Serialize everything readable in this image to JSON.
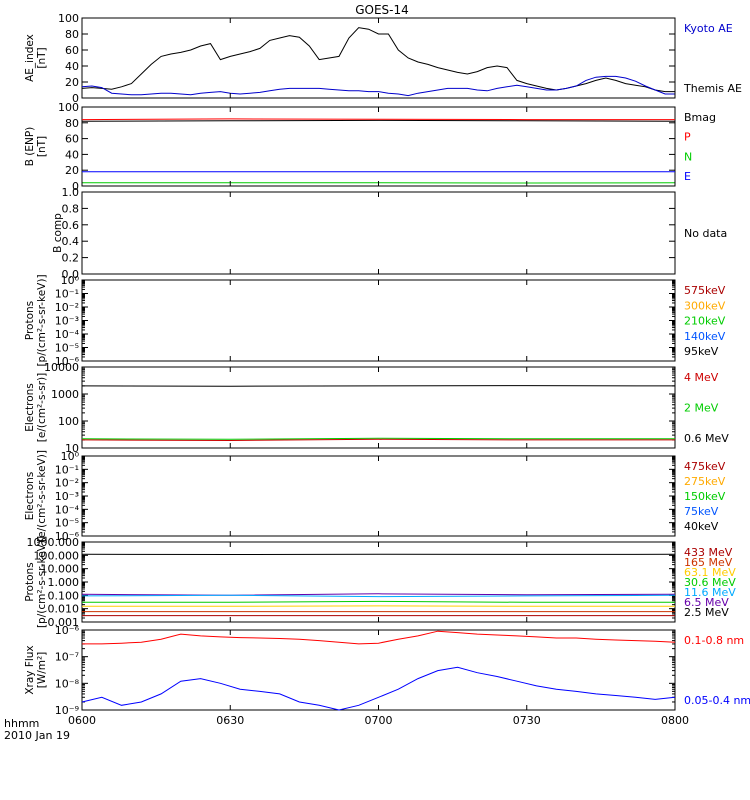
{
  "title": "GOES-14",
  "time_axis": {
    "ticks": [
      "0600",
      "0630",
      "0700",
      "0730",
      "0800"
    ],
    "corner_label": "hhmm",
    "date": "2010 Jan 19"
  },
  "panels": [
    {
      "ylabel": [
        "AE_index",
        "[nT]"
      ],
      "scale": "linear",
      "ylim": [
        0,
        100
      ],
      "yticks": [
        "0",
        "20",
        "40",
        "60",
        "80",
        "100"
      ],
      "legend": [
        {
          "label": "Kyoto AE",
          "color": "#0000cc"
        },
        {
          "label": "Themis AE",
          "color": "#000000"
        }
      ]
    },
    {
      "ylabel": [
        "B (ENP)",
        "[nT]"
      ],
      "scale": "linear",
      "ylim": [
        0,
        100
      ],
      "yticks": [
        "0",
        "20",
        "40",
        "60",
        "80",
        "100"
      ],
      "legend": [
        {
          "label": "Bmag",
          "color": "#000000"
        },
        {
          "label": "P",
          "color": "#ff0000"
        },
        {
          "label": "N",
          "color": "#00cc00"
        },
        {
          "label": "E",
          "color": "#0000ff"
        }
      ]
    },
    {
      "ylabel": [
        "B comp"
      ],
      "scale": "linear",
      "ylim": [
        0,
        1
      ],
      "yticks": [
        "0.0",
        "0.2",
        "0.4",
        "0.6",
        "0.8",
        "1.0"
      ],
      "legend": [
        {
          "label": "No data",
          "color": "#000000"
        }
      ]
    },
    {
      "ylabel": [
        "Protons",
        "[p/(cm²-s-sr-keV)]"
      ],
      "scale": "log",
      "log_range": [
        -6,
        0
      ],
      "yticks": [
        "10⁻⁶",
        "10⁻⁵",
        "10⁻⁴",
        "10⁻³",
        "10⁻²",
        "10⁻¹",
        "10⁰"
      ],
      "legend": [
        {
          "label": "575keV",
          "color": "#aa0000"
        },
        {
          "label": "300keV",
          "color": "#ffaa00"
        },
        {
          "label": "210keV",
          "color": "#00cc00"
        },
        {
          "label": "140keV",
          "color": "#0055ff"
        },
        {
          "label": "95keV",
          "color": "#000000"
        }
      ]
    },
    {
      "ylabel": [
        "Electrons",
        "[e/(cm²-s-sr)]"
      ],
      "scale": "log",
      "log_range": [
        1,
        4
      ],
      "yticks": [
        "10",
        "100",
        "1000",
        "10000"
      ],
      "legend": [
        {
          "label": "4 MeV",
          "color": "#cc0000"
        },
        {
          "label": "2 MeV",
          "color": "#00cc00"
        },
        {
          "label": "0.6 MeV",
          "color": "#000000"
        }
      ]
    },
    {
      "ylabel": [
        "Electrons",
        "[e/(cm²-s-sr-keV)]"
      ],
      "scale": "log",
      "log_range": [
        -6,
        0
      ],
      "yticks": [
        "10⁻⁶",
        "10⁻⁵",
        "10⁻⁴",
        "10⁻³",
        "10⁻²",
        "10⁻¹",
        "10⁰"
      ],
      "legend": [
        {
          "label": "475keV",
          "color": "#aa0000"
        },
        {
          "label": "275keV",
          "color": "#ffaa00"
        },
        {
          "label": "150keV",
          "color": "#00cc00"
        },
        {
          "label": "75keV",
          "color": "#0055ff"
        },
        {
          "label": "40keV",
          "color": "#000000"
        }
      ]
    },
    {
      "ylabel": [
        "Protons",
        "[p/(cm²-s-sr-keV)]"
      ],
      "scale": "log",
      "log_range": [
        -3,
        3
      ],
      "yticks": [
        "0.001",
        "0.010",
        "0.100",
        "1.000",
        "10.000",
        "100.000",
        "1000.000"
      ],
      "legend": [
        {
          "label": "433 MeV",
          "color": "#aa0000"
        },
        {
          "label": "165 MeV",
          "color": "#cc3300"
        },
        {
          "label": "63.1 MeV",
          "color": "#ffcc00"
        },
        {
          "label": "30.6 MeV",
          "color": "#00cc00"
        },
        {
          "label": "11.6 MeV",
          "color": "#00aaff"
        },
        {
          "label": "6.5 MeV",
          "color": "#6600aa"
        },
        {
          "label": "2.5 MeV",
          "color": "#000000"
        }
      ]
    },
    {
      "ylabel": [
        "Xray Flux",
        "[W/m²]"
      ],
      "scale": "log",
      "log_range": [
        -9,
        -6
      ],
      "yticks": [
        "10⁻⁹",
        "10⁻⁸",
        "10⁻⁷",
        "10⁻⁶"
      ],
      "legend": [
        {
          "label": "0.1-0.8 nm",
          "color": "#ff0000"
        },
        {
          "label": "0.05-0.4 nm",
          "color": "#0000ff"
        }
      ]
    }
  ],
  "chart_data": [
    {
      "type": "line",
      "panel": 0,
      "xlabel": "",
      "ylabel": "AE_index [nT]",
      "ylim": [
        0,
        100
      ],
      "x_minutes_after_0600": [
        0,
        2,
        4,
        6,
        8,
        10,
        12,
        14,
        16,
        18,
        20,
        22,
        24,
        26,
        28,
        30,
        32,
        34,
        36,
        38,
        40,
        42,
        44,
        46,
        48,
        50,
        52,
        54,
        56,
        58,
        60,
        62,
        64,
        66,
        68,
        70,
        72,
        74,
        76,
        78,
        80,
        82,
        84,
        86,
        88,
        90,
        92,
        94,
        96,
        98,
        100,
        102,
        104,
        106,
        108,
        110,
        112,
        114,
        116,
        118,
        120
      ],
      "series": [
        {
          "name": "Themis AE",
          "color": "#000000",
          "values": [
            12,
            13,
            12,
            11,
            14,
            18,
            30,
            42,
            52,
            55,
            57,
            60,
            65,
            68,
            48,
            52,
            55,
            58,
            62,
            72,
            75,
            78,
            76,
            65,
            48,
            50,
            52,
            75,
            88,
            86,
            80,
            80,
            60,
            50,
            45,
            42,
            38,
            35,
            32,
            30,
            33,
            38,
            40,
            38,
            22,
            18,
            15,
            12,
            10,
            12,
            15,
            18,
            22,
            25,
            22,
            18,
            16,
            14,
            10,
            8,
            8
          ]
        },
        {
          "name": "Kyoto AE",
          "color": "#0000cc",
          "values": [
            14,
            15,
            13,
            6,
            5,
            4,
            4,
            5,
            6,
            6,
            5,
            4,
            6,
            7,
            8,
            6,
            5,
            6,
            7,
            9,
            11,
            12,
            12,
            12,
            12,
            11,
            10,
            9,
            9,
            8,
            8,
            6,
            5,
            3,
            6,
            8,
            10,
            12,
            12,
            12,
            10,
            9,
            12,
            14,
            16,
            14,
            12,
            10,
            10,
            12,
            15,
            22,
            26,
            27,
            27,
            25,
            21,
            15,
            10,
            5,
            5
          ]
        }
      ]
    },
    {
      "type": "line",
      "panel": 1,
      "xlabel": "",
      "ylabel": "B (ENP) [nT]",
      "ylim": [
        0,
        100
      ],
      "x_minutes_after_0600": [
        0,
        30,
        60,
        90,
        120
      ],
      "series": [
        {
          "name": "Bmag",
          "color": "#000000",
          "values": [
            82,
            82.5,
            83,
            82.5,
            82
          ]
        },
        {
          "name": "P",
          "color": "#ff0000",
          "values": [
            84,
            85,
            84.5,
            84,
            84
          ]
        },
        {
          "name": "N",
          "color": "#00cc00",
          "values": [
            4,
            4.2,
            4.1,
            3.8,
            4
          ]
        },
        {
          "name": "E",
          "color": "#0000ff",
          "values": [
            18,
            18,
            18,
            18,
            18
          ]
        }
      ]
    },
    {
      "type": "line",
      "panel": 4,
      "xlabel": "",
      "ylabel": "Electrons [e/(cm²-s-sr)]",
      "yscale": "log",
      "ylim": [
        10,
        10000
      ],
      "x_minutes_after_0600": [
        0,
        30,
        60,
        90,
        120
      ],
      "series": [
        {
          "name": "0.6 MeV",
          "color": "#000000",
          "values": [
            2000,
            1950,
            2000,
            2050,
            2000
          ]
        },
        {
          "name": "2 MeV",
          "color": "#00cc00",
          "values": [
            22,
            21,
            23,
            22,
            22
          ]
        },
        {
          "name": "4 MeV",
          "color": "#cc0000",
          "values": [
            20,
            19,
            21,
            20,
            20
          ]
        }
      ]
    },
    {
      "type": "line",
      "panel": 6,
      "xlabel": "",
      "ylabel": "Protons [p/(cm²-s-sr-keV)]",
      "yscale": "log",
      "ylim": [
        0.001,
        1000
      ],
      "x_minutes_after_0600": [
        0,
        30,
        60,
        90,
        120
      ],
      "series": [
        {
          "name": "2.5 MeV",
          "color": "#000000",
          "values": [
            120,
            115,
            120,
            118,
            120
          ]
        },
        {
          "name": "6.5 MeV",
          "color": "#6600aa",
          "values": [
            0.12,
            0.1,
            0.13,
            0.11,
            0.12
          ]
        },
        {
          "name": "11.6 MeV",
          "color": "#00aaff",
          "values": [
            0.09,
            0.1,
            0.08,
            0.09,
            0.1
          ]
        },
        {
          "name": "30.6 MeV",
          "color": "#00cc00",
          "values": [
            0.03,
            0.03,
            0.035,
            0.03,
            0.03
          ]
        },
        {
          "name": "63.1 MeV",
          "color": "#ffcc00",
          "values": [
            0.015,
            0.015,
            0.016,
            0.015,
            0.015
          ]
        },
        {
          "name": "165 MeV",
          "color": "#cc3300",
          "values": [
            0.006,
            0.006,
            0.006,
            0.006,
            0.006
          ]
        },
        {
          "name": "433 MeV",
          "color": "#aa0000",
          "values": [
            0.003,
            0.003,
            0.003,
            0.003,
            0.003
          ]
        }
      ]
    },
    {
      "type": "line",
      "panel": 7,
      "xlabel": "",
      "ylabel": "Xray Flux [W/m²]",
      "yscale": "log",
      "ylim": [
        1e-09,
        1e-06
      ],
      "x_minutes_after_0600": [
        0,
        4,
        8,
        12,
        16,
        20,
        24,
        28,
        32,
        36,
        40,
        44,
        48,
        52,
        56,
        60,
        64,
        68,
        72,
        76,
        80,
        84,
        88,
        92,
        96,
        100,
        104,
        108,
        112,
        116,
        120
      ],
      "series": [
        {
          "name": "0.1-0.8 nm",
          "color": "#ff0000",
          "values": [
            3e-07,
            3e-07,
            3.2e-07,
            3.5e-07,
            4.5e-07,
            7e-07,
            6e-07,
            5.5e-07,
            5.2e-07,
            5e-07,
            4.8e-07,
            4.5e-07,
            4e-07,
            3.5e-07,
            3e-07,
            3.2e-07,
            4.5e-07,
            6e-07,
            9e-07,
            8e-07,
            7e-07,
            6.5e-07,
            6e-07,
            5.5e-07,
            5e-07,
            5e-07,
            4.5e-07,
            4.2e-07,
            4e-07,
            3.8e-07,
            3.5e-07
          ]
        },
        {
          "name": "0.05-0.4 nm",
          "color": "#0000ff",
          "values": [
            2e-09,
            3e-09,
            1.5e-09,
            2e-09,
            4e-09,
            1.2e-08,
            1.5e-08,
            1e-08,
            6e-09,
            5e-09,
            4e-09,
            2e-09,
            1.5e-09,
            1e-09,
            1.5e-09,
            3e-09,
            6e-09,
            1.5e-08,
            3e-08,
            4e-08,
            2.5e-08,
            1.8e-08,
            1.2e-08,
            8e-09,
            6e-09,
            5e-09,
            4e-09,
            3.5e-09,
            3e-09,
            2.5e-09,
            3e-09
          ]
        }
      ]
    }
  ]
}
